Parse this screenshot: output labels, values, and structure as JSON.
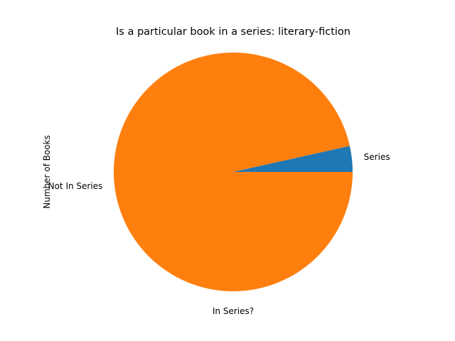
{
  "chart_data": {
    "type": "pie",
    "title": "Is a particular book in a series: literary-fiction",
    "xlabel": "In Series?",
    "ylabel": "Number of Books",
    "categories": [
      "Series",
      "Not In Series"
    ],
    "values": [
      3.5,
      96.5
    ],
    "colors": [
      "#1f77b4",
      "#ff7f0e"
    ],
    "start_angle_degrees": 0,
    "direction": "counterclockwise",
    "legend": "none"
  }
}
